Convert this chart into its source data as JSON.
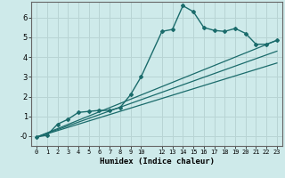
{
  "xlabel": "Humidex (Indice chaleur)",
  "bg_color": "#ceeaea",
  "grid_color": "#b8d4d4",
  "line_color": "#1a6b6b",
  "xlim": [
    -0.5,
    23.5
  ],
  "ylim": [
    -0.5,
    6.8
  ],
  "xticks": [
    0,
    1,
    2,
    3,
    4,
    5,
    6,
    7,
    8,
    9,
    10,
    12,
    13,
    14,
    15,
    16,
    17,
    18,
    19,
    20,
    21,
    22,
    23
  ],
  "yticks": [
    0,
    1,
    2,
    3,
    4,
    5,
    6
  ],
  "ytick_labels": [
    "-0",
    "1",
    "2",
    "3",
    "4",
    "5",
    "6"
  ],
  "line1_x": [
    0,
    1,
    2,
    3,
    4,
    5,
    6,
    7,
    8,
    9,
    10,
    12,
    13,
    14,
    15,
    16,
    17,
    18,
    19,
    20,
    21,
    22,
    23
  ],
  "line1_y": [
    -0.05,
    0.05,
    0.6,
    0.85,
    1.2,
    1.25,
    1.3,
    1.3,
    1.45,
    2.1,
    3.0,
    5.3,
    5.4,
    6.6,
    6.3,
    5.5,
    5.35,
    5.3,
    5.45,
    5.2,
    4.65,
    4.65,
    4.85
  ],
  "line2_x": [
    0,
    23
  ],
  "line2_y": [
    -0.05,
    4.85
  ],
  "line3_x": [
    0,
    23
  ],
  "line3_y": [
    -0.05,
    4.3
  ],
  "line4_x": [
    0,
    23
  ],
  "line4_y": [
    -0.05,
    3.7
  ]
}
